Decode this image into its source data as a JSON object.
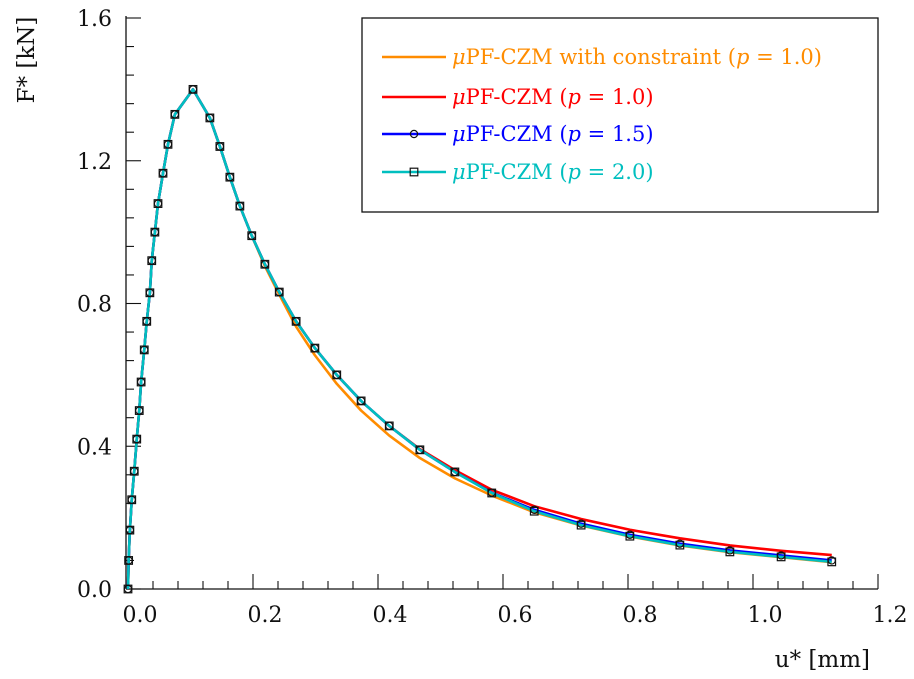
{
  "chart_data": {
    "type": "line",
    "title": "",
    "xlabel": "u* [mm]",
    "ylabel": "F* [kN]",
    "xlim": [
      0,
      1.2
    ],
    "ylim": [
      0,
      1.6
    ],
    "xticks": [
      "0.0",
      "0.2",
      "0.4",
      "0.6",
      "0.8",
      "1.0",
      "1.2"
    ],
    "yticks": [
      "0.0",
      "0.4",
      "0.8",
      "1.2",
      "1.6"
    ],
    "grid": false,
    "legend_position": "top-right",
    "x": [
      0.0,
      0.001,
      0.003,
      0.006,
      0.01,
      0.014,
      0.018,
      0.021,
      0.026,
      0.03,
      0.035,
      0.038,
      0.043,
      0.048,
      0.056,
      0.064,
      0.075,
      0.104,
      0.131,
      0.147,
      0.163,
      0.179,
      0.198,
      0.219,
      0.242,
      0.269,
      0.299,
      0.334,
      0.373,
      0.418,
      0.467,
      0.523,
      0.582,
      0.65,
      0.725,
      0.803,
      0.883,
      0.963,
      1.045,
      1.126
    ],
    "series": [
      {
        "name": "μPF-CZM with constraint (p = 1.0)",
        "color": "#ff8c00",
        "marker": "none",
        "values": [
          0,
          0.08,
          0.165,
          0.25,
          0.33,
          0.42,
          0.5,
          0.58,
          0.67,
          0.75,
          0.83,
          0.92,
          1.0,
          1.08,
          1.165,
          1.246,
          1.33,
          1.4,
          1.32,
          1.24,
          1.154,
          1.073,
          0.99,
          0.905,
          0.825,
          0.735,
          0.655,
          0.575,
          0.5,
          0.43,
          0.367,
          0.31,
          0.262,
          0.215,
          0.178,
          0.147,
          0.122,
          0.103,
          0.089,
          0.075
        ]
      },
      {
        "name": "μPF-CZM (p = 1.0)",
        "color": "#ff0000",
        "marker": "none",
        "values": [
          0,
          0.08,
          0.165,
          0.25,
          0.33,
          0.42,
          0.5,
          0.58,
          0.67,
          0.75,
          0.83,
          0.92,
          1.0,
          1.08,
          1.165,
          1.246,
          1.33,
          1.4,
          1.32,
          1.24,
          1.154,
          1.073,
          0.99,
          0.91,
          0.832,
          0.75,
          0.675,
          0.6,
          0.527,
          0.457,
          0.392,
          0.333,
          0.278,
          0.232,
          0.196,
          0.166,
          0.142,
          0.122,
          0.107,
          0.095
        ]
      },
      {
        "name": "μPF-CZM (p = 1.5)",
        "color": "#0000ff",
        "marker": "circle",
        "values": [
          0,
          0.08,
          0.165,
          0.25,
          0.33,
          0.42,
          0.5,
          0.58,
          0.67,
          0.75,
          0.83,
          0.92,
          1.0,
          1.08,
          1.165,
          1.246,
          1.33,
          1.4,
          1.32,
          1.24,
          1.154,
          1.073,
          0.99,
          0.91,
          0.832,
          0.75,
          0.675,
          0.6,
          0.527,
          0.457,
          0.39,
          0.328,
          0.27,
          0.222,
          0.183,
          0.152,
          0.127,
          0.108,
          0.094,
          0.08
        ]
      },
      {
        "name": "μPF-CZM (p = 2.0)",
        "color": "#00bfbf",
        "marker": "square",
        "values": [
          0,
          0.08,
          0.165,
          0.25,
          0.33,
          0.42,
          0.5,
          0.58,
          0.67,
          0.75,
          0.83,
          0.92,
          1.0,
          1.08,
          1.165,
          1.246,
          1.33,
          1.4,
          1.32,
          1.24,
          1.154,
          1.073,
          0.99,
          0.91,
          0.832,
          0.75,
          0.675,
          0.6,
          0.527,
          0.457,
          0.39,
          0.328,
          0.269,
          0.218,
          0.179,
          0.148,
          0.123,
          0.104,
          0.09,
          0.076
        ]
      }
    ],
    "legend": [
      {
        "prefix": "μ",
        "text": "PF-CZM with constraint (",
        "p": "p",
        "suffix": " = 1.0)"
      },
      {
        "prefix": "μ",
        "text": "PF-CZM (",
        "p": "p",
        "suffix": " = 1.0)"
      },
      {
        "prefix": "μ",
        "text": "PF-CZM (",
        "p": "p",
        "suffix": " = 1.5)"
      },
      {
        "prefix": "μ",
        "text": "PF-CZM (",
        "p": "p",
        "suffix": " = 2.0)"
      }
    ]
  }
}
